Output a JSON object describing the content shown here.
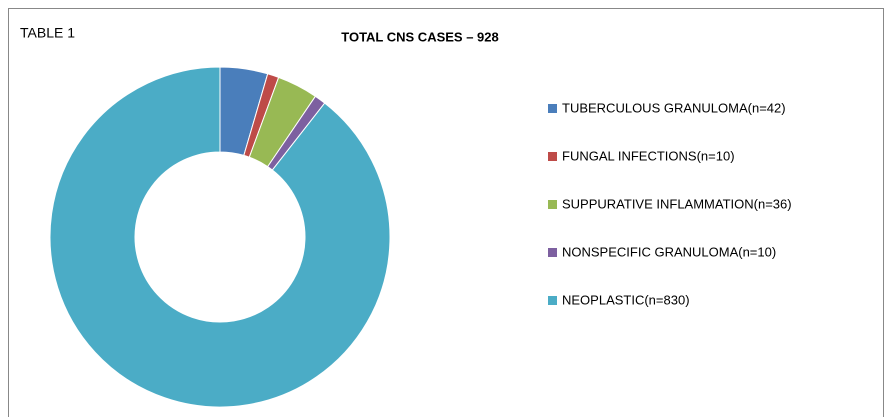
{
  "chart_data": {
    "type": "pie",
    "donut": true,
    "label": "TABLE 1",
    "title": "TOTAL  CNS CASES – 928",
    "categories": [
      "TUBERCULOUS  GRANULOMA(n=42)",
      "FUNGAL INFECTIONS(n=10)",
      "SUPPURATIVE  INFLAMMATION(n=36)",
      "NONSPECIFIC  GRANULOMA(n=10)",
      "NEOPLASTIC(n=830)"
    ],
    "values": [
      42,
      10,
      36,
      10,
      830
    ],
    "colors": [
      "#4a7ebb",
      "#be4b48",
      "#98b954",
      "#7d60a0",
      "#4bacc6"
    ],
    "legend": "right"
  }
}
